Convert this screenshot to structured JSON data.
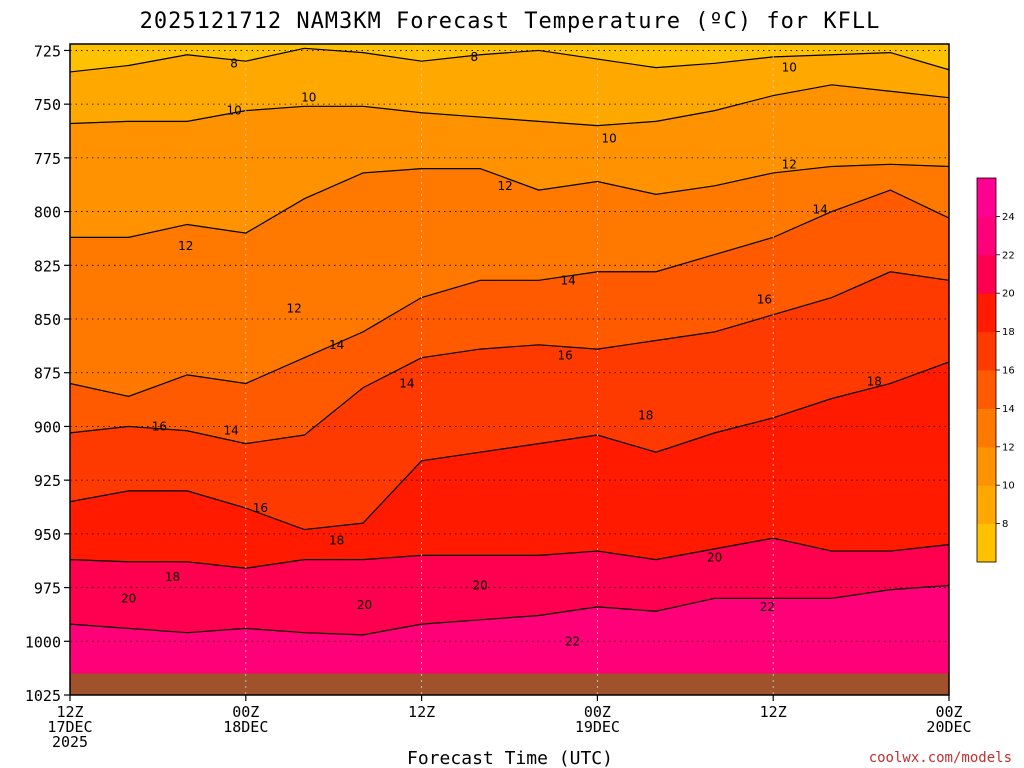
{
  "chart_data": {
    "type": "heatmap",
    "title": "2025121712 NAM3KM Forecast Temperature (ºC) for KFLL",
    "xlabel": "Forecast Time (UTC)",
    "x_ticks": [
      {
        "hours": 0,
        "line1": "12Z",
        "line2": "17DEC",
        "line3": "2025"
      },
      {
        "hours": 12,
        "line1": "00Z",
        "line2": "18DEC",
        "line3": ""
      },
      {
        "hours": 24,
        "line1": "12Z",
        "line2": "",
        "line3": ""
      },
      {
        "hours": 36,
        "line1": "00Z",
        "line2": "19DEC",
        "line3": ""
      },
      {
        "hours": 48,
        "line1": "12Z",
        "line2": "",
        "line3": ""
      },
      {
        "hours": 60,
        "line1": "00Z",
        "line2": "20DEC",
        "line3": ""
      }
    ],
    "y_ticks": [
      725,
      750,
      775,
      800,
      825,
      850,
      875,
      900,
      925,
      950,
      975,
      1000,
      1025
    ],
    "y_unit": "hPa",
    "xlim": [
      0,
      60
    ],
    "ylim": [
      1025,
      722
    ],
    "grid": true,
    "colorbar": {
      "levels": [
        8,
        10,
        12,
        14,
        16,
        18,
        20,
        22,
        24
      ],
      "colors": [
        "#ffc200",
        "#ffa800",
        "#ff9200",
        "#ff7800",
        "#ff5a00",
        "#ff3a00",
        "#ff1a00",
        "#ff0050",
        "#ff0078",
        "#ff0090"
      ]
    },
    "surface_pressure_hpa": 1015,
    "surface_color": "#a0522d",
    "isotherm_profiles": {
      "8": [
        [
          0,
          735
        ],
        [
          4,
          732
        ],
        [
          8,
          727
        ],
        [
          12,
          730
        ],
        [
          16,
          724
        ],
        [
          20,
          726
        ],
        [
          24,
          730
        ],
        [
          28,
          727
        ],
        [
          32,
          725
        ],
        [
          36,
          729
        ],
        [
          40,
          733
        ],
        [
          44,
          731
        ],
        [
          48,
          728
        ],
        [
          52,
          727
        ],
        [
          56,
          726
        ],
        [
          60,
          734
        ]
      ],
      "10": [
        [
          0,
          759
        ],
        [
          4,
          758
        ],
        [
          8,
          758
        ],
        [
          12,
          753
        ],
        [
          16,
          751
        ],
        [
          20,
          751
        ],
        [
          24,
          754
        ],
        [
          28,
          756
        ],
        [
          32,
          758
        ],
        [
          36,
          760
        ],
        [
          40,
          758
        ],
        [
          44,
          753
        ],
        [
          48,
          746
        ],
        [
          52,
          741
        ],
        [
          56,
          744
        ],
        [
          60,
          747
        ]
      ],
      "12": [
        [
          0,
          812
        ],
        [
          4,
          812
        ],
        [
          8,
          806
        ],
        [
          12,
          810
        ],
        [
          16,
          794
        ],
        [
          20,
          782
        ],
        [
          24,
          780
        ],
        [
          28,
          780
        ],
        [
          32,
          790
        ],
        [
          36,
          786
        ],
        [
          40,
          792
        ],
        [
          44,
          788
        ],
        [
          48,
          782
        ],
        [
          52,
          779
        ],
        [
          56,
          778
        ],
        [
          60,
          779
        ]
      ],
      "14": [
        [
          0,
          880
        ],
        [
          4,
          886
        ],
        [
          8,
          876
        ],
        [
          12,
          880
        ],
        [
          16,
          868
        ],
        [
          20,
          856
        ],
        [
          24,
          840
        ],
        [
          28,
          832
        ],
        [
          32,
          832
        ],
        [
          36,
          828
        ],
        [
          40,
          828
        ],
        [
          44,
          820
        ],
        [
          48,
          812
        ],
        [
          52,
          800
        ],
        [
          56,
          790
        ],
        [
          60,
          803
        ]
      ],
      "16": [
        [
          0,
          903
        ],
        [
          4,
          900
        ],
        [
          8,
          902
        ],
        [
          12,
          908
        ],
        [
          16,
          904
        ],
        [
          20,
          882
        ],
        [
          24,
          868
        ],
        [
          28,
          864
        ],
        [
          32,
          862
        ],
        [
          36,
          864
        ],
        [
          40,
          860
        ],
        [
          44,
          856
        ],
        [
          48,
          848
        ],
        [
          52,
          840
        ],
        [
          56,
          828
        ],
        [
          60,
          832
        ]
      ],
      "18": [
        [
          0,
          935
        ],
        [
          4,
          930
        ],
        [
          8,
          930
        ],
        [
          12,
          938
        ],
        [
          16,
          948
        ],
        [
          20,
          945
        ],
        [
          24,
          916
        ],
        [
          28,
          912
        ],
        [
          32,
          908
        ],
        [
          36,
          904
        ],
        [
          40,
          912
        ],
        [
          44,
          903
        ],
        [
          48,
          896
        ],
        [
          52,
          887
        ],
        [
          56,
          880
        ],
        [
          60,
          870
        ]
      ],
      "20": [
        [
          0,
          962
        ],
        [
          4,
          963
        ],
        [
          8,
          963
        ],
        [
          12,
          966
        ],
        [
          16,
          962
        ],
        [
          20,
          962
        ],
        [
          24,
          960
        ],
        [
          28,
          960
        ],
        [
          32,
          960
        ],
        [
          36,
          958
        ],
        [
          40,
          962
        ],
        [
          44,
          957
        ],
        [
          48,
          952
        ],
        [
          52,
          958
        ],
        [
          56,
          958
        ],
        [
          60,
          955
        ]
      ],
      "22": [
        [
          0,
          992
        ],
        [
          4,
          994
        ],
        [
          8,
          996
        ],
        [
          12,
          994
        ],
        [
          16,
          996
        ],
        [
          20,
          997
        ],
        [
          24,
          992
        ],
        [
          28,
          990
        ],
        [
          32,
          988
        ],
        [
          36,
          984
        ],
        [
          40,
          986
        ],
        [
          44,
          980
        ],
        [
          48,
          980
        ],
        [
          52,
          980
        ],
        [
          56,
          976
        ],
        [
          60,
          974
        ]
      ]
    },
    "contour_labels": [
      {
        "text": "8",
        "hours": 11.2,
        "p": 731
      },
      {
        "text": "8",
        "hours": 27.6,
        "p": 728
      },
      {
        "text": "10",
        "hours": 16.3,
        "p": 747
      },
      {
        "text": "10",
        "hours": 11.2,
        "p": 753
      },
      {
        "text": "10",
        "hours": 36.8,
        "p": 766
      },
      {
        "text": "10",
        "hours": 49.1,
        "p": 733
      },
      {
        "text": "12",
        "hours": 29.7,
        "p": 788
      },
      {
        "text": "12",
        "hours": 49.1,
        "p": 778
      },
      {
        "text": "12",
        "hours": 7.9,
        "p": 816
      },
      {
        "text": "12",
        "hours": 15.3,
        "p": 845
      },
      {
        "text": "14",
        "hours": 51.2,
        "p": 799
      },
      {
        "text": "14",
        "hours": 34.0,
        "p": 832
      },
      {
        "text": "14",
        "hours": 18.2,
        "p": 862
      },
      {
        "text": "14",
        "hours": 23.0,
        "p": 880
      },
      {
        "text": "14",
        "hours": 11.0,
        "p": 902
      },
      {
        "text": "16",
        "hours": 47.4,
        "p": 841
      },
      {
        "text": "16",
        "hours": 33.8,
        "p": 867
      },
      {
        "text": "16",
        "hours": 6.1,
        "p": 900
      },
      {
        "text": "16",
        "hours": 13.0,
        "p": 938
      },
      {
        "text": "18",
        "hours": 39.3,
        "p": 895
      },
      {
        "text": "18",
        "hours": 54.9,
        "p": 879
      },
      {
        "text": "18",
        "hours": 18.2,
        "p": 953
      },
      {
        "text": "18",
        "hours": 7.0,
        "p": 970
      },
      {
        "text": "20",
        "hours": 4.0,
        "p": 980
      },
      {
        "text": "20",
        "hours": 20.1,
        "p": 983
      },
      {
        "text": "20",
        "hours": 28.0,
        "p": 974
      },
      {
        "text": "20",
        "hours": 44.0,
        "p": 961
      },
      {
        "text": "22",
        "hours": 34.3,
        "p": 1000
      },
      {
        "text": "22",
        "hours": 47.6,
        "p": 984
      }
    ]
  },
  "credit": "coolwx.com/models"
}
